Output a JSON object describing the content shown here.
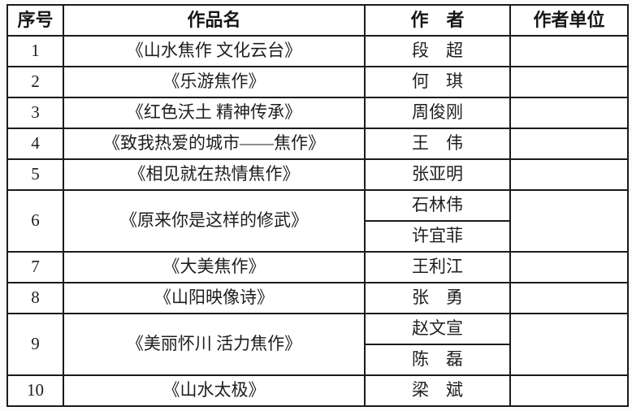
{
  "table": {
    "headers": [
      "序号",
      "作品名",
      "作　者",
      "作者单位"
    ],
    "rows": [
      {
        "no": "1",
        "title": "《山水焦作 文化云台》",
        "authors": [
          "段　超"
        ],
        "unit": ""
      },
      {
        "no": "2",
        "title": "《乐游焦作》",
        "authors": [
          "何　琪"
        ],
        "unit": ""
      },
      {
        "no": "3",
        "title": "《红色沃土 精神传承》",
        "authors": [
          "周俊刚"
        ],
        "unit": ""
      },
      {
        "no": "4",
        "title": "《致我热爱的城市——焦作》",
        "authors": [
          "王　伟"
        ],
        "unit": ""
      },
      {
        "no": "5",
        "title": "《相见就在热情焦作》",
        "authors": [
          "张亚明"
        ],
        "unit": ""
      },
      {
        "no": "6",
        "title": "《原来你是这样的修武》",
        "authors": [
          "石林伟",
          "许宜菲"
        ],
        "unit": ""
      },
      {
        "no": "7",
        "title": "《大美焦作》",
        "authors": [
          "王利江"
        ],
        "unit": ""
      },
      {
        "no": "8",
        "title": "《山阳映像诗》",
        "authors": [
          "张　勇"
        ],
        "unit": ""
      },
      {
        "no": "9",
        "title": "《美丽怀川 活力焦作》",
        "authors": [
          "赵文宣",
          "陈　磊"
        ],
        "unit": ""
      },
      {
        "no": "10",
        "title": "《山水太极》",
        "authors": [
          "梁　斌"
        ],
        "unit": ""
      }
    ],
    "colors": {
      "border": "#1b1b1b",
      "text": "#1e1e1e",
      "cell_background": "#ffffff",
      "page_background": "#fbfbfb"
    }
  }
}
